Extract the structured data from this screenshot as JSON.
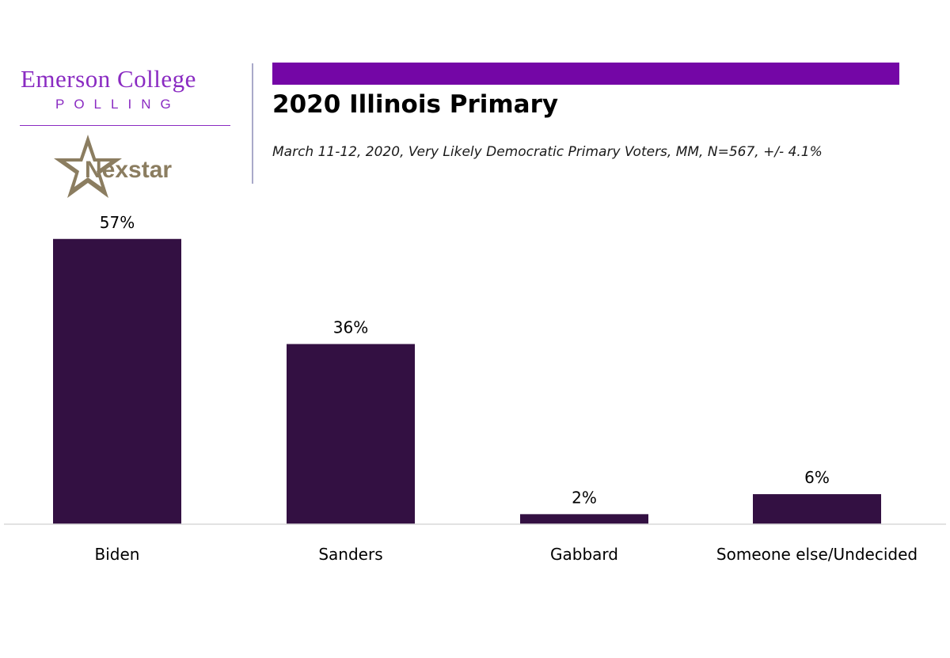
{
  "brand": {
    "emerson": "Emerson College",
    "polling": "POLLING",
    "nexstar": "Nexstar"
  },
  "colors": {
    "accent": "#7406a6",
    "bar": "#331042",
    "brand_purple": "#8a2bc2",
    "nexstar_gold": "#8b7d60"
  },
  "header": {
    "title": "2020 Illinois Primary",
    "subtitle": "March 11-12, 2020, Very Likely Democratic Primary Voters, MM,  N=567, +/- 4.1%"
  },
  "chart_data": {
    "type": "bar",
    "title": "2020 Illinois Primary",
    "categories": [
      "Biden",
      "Sanders",
      "Gabbard",
      "Someone else/Undecided"
    ],
    "values": [
      57,
      36,
      2,
      6
    ],
    "value_labels": [
      "57%",
      "36%",
      "2%",
      "6%"
    ],
    "xlabel": "",
    "ylabel": "",
    "ylim": [
      0,
      60
    ],
    "grid": false,
    "legend": "none"
  }
}
